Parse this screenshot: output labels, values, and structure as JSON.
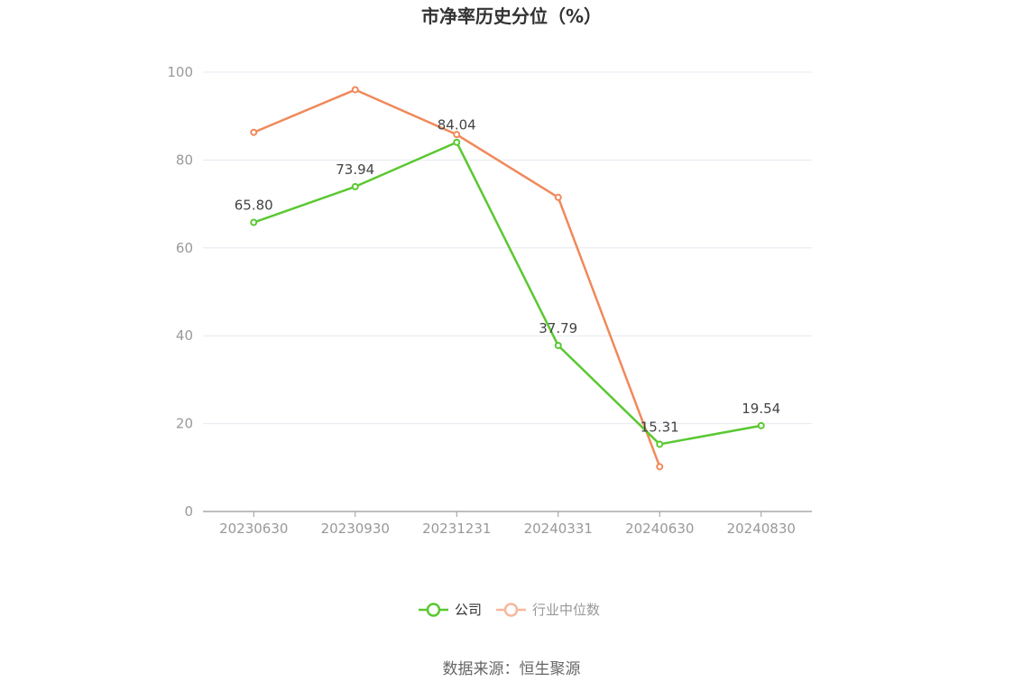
{
  "chart_data": {
    "type": "line",
    "title": "市净率历史分位（%）",
    "categories": [
      "20230630",
      "20230930",
      "20231231",
      "20240331",
      "20240630",
      "20240830"
    ],
    "ylim": [
      0,
      100
    ],
    "yticks": [
      0,
      20,
      40,
      60,
      80,
      100
    ],
    "grid": true,
    "legend_position": "bottom-center",
    "series": [
      {
        "name": "公司",
        "color": "#5ac832",
        "values": [
          65.8,
          73.94,
          84.04,
          37.79,
          15.31,
          19.54
        ],
        "labels": [
          "65.80",
          "73.94",
          "84.04",
          "37.79",
          "15.31",
          "19.54"
        ]
      },
      {
        "name": "行业中位数",
        "color": "#f0895a",
        "legend_color": "#f6b89c",
        "values": [
          86.3,
          96.0,
          85.8,
          71.5,
          10.2,
          null
        ]
      }
    ]
  },
  "source": "数据来源：恒生聚源"
}
